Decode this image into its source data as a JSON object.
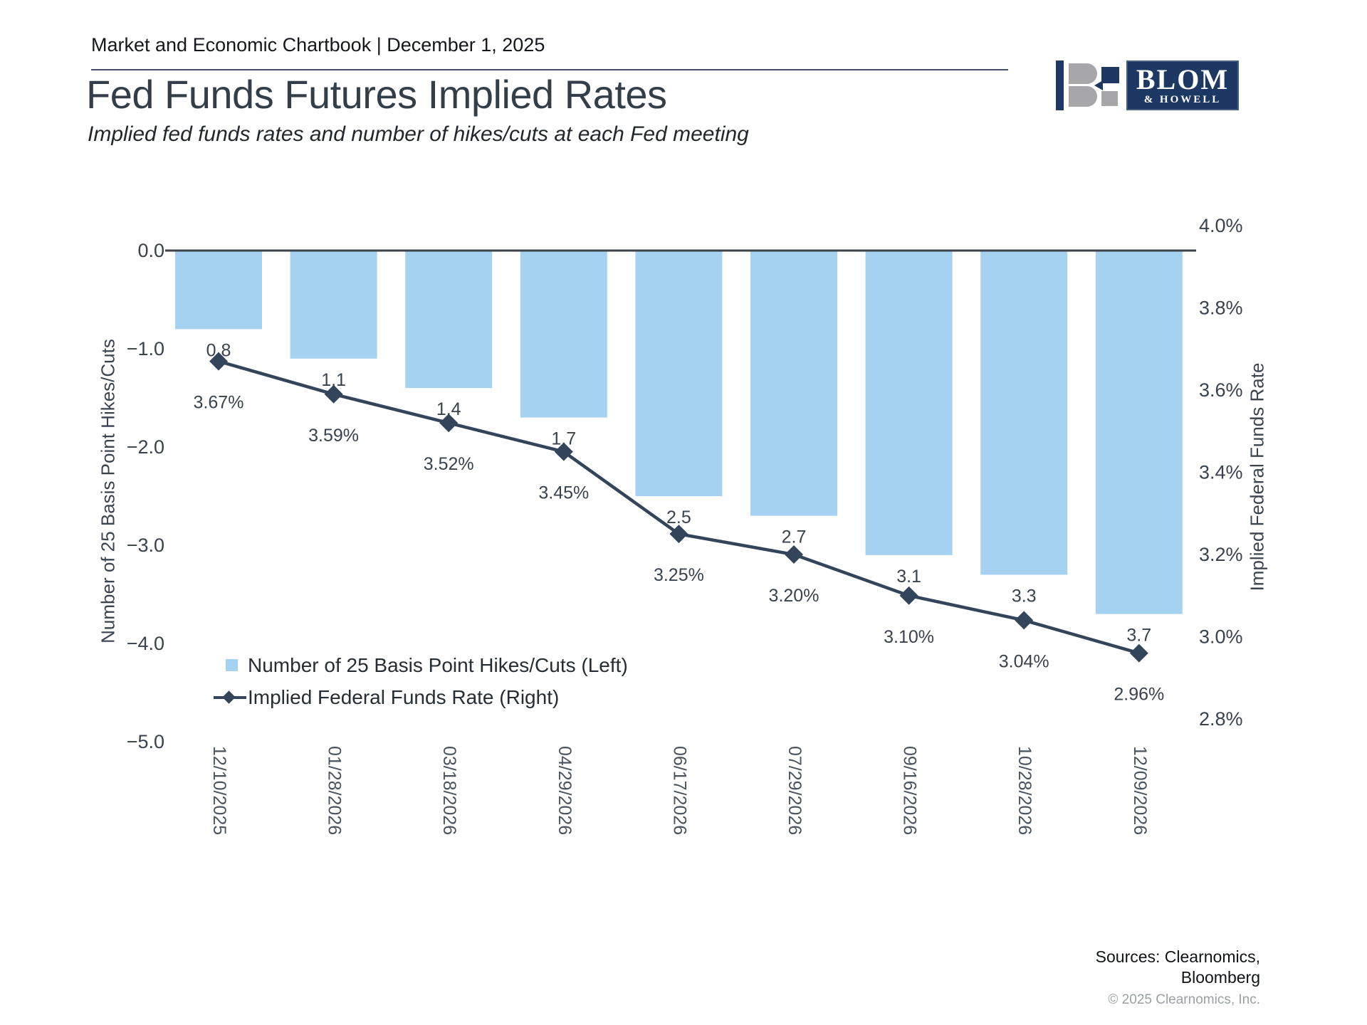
{
  "page": {
    "header": "Market and Economic Chartbook | December 1, 2025",
    "title": "Fed Funds Futures Implied Rates",
    "subtitle": "Implied fed funds rates and number of hikes/cuts at each Fed meeting",
    "sources_line1": "Sources: Clearnomics,",
    "sources_line2": "Bloomberg",
    "copyright": "© 2025 Clearnomics, Inc."
  },
  "logo": {
    "name": "BLOM",
    "suffix": "& HOWELL"
  },
  "colors": {
    "bar": "#A6D2F1",
    "line": "#33455B",
    "navy": "#1E3864",
    "logo_gray": "#A7A7A9",
    "axis_line": "#3e434a",
    "tick_text": "#39424D",
    "date_text": "#49525D"
  },
  "chart_data": {
    "type": "bar+line",
    "title": "Fed Funds Futures Implied Rates",
    "subtitle": "Implied fed funds rates and number of hikes/cuts at each Fed meeting",
    "categories": [
      "12/10/2025",
      "01/28/2026",
      "03/18/2026",
      "04/29/2026",
      "06/17/2026",
      "07/29/2026",
      "09/16/2026",
      "10/28/2026",
      "12/09/2026"
    ],
    "series": [
      {
        "name": "Number of 25 Basis Point Hikes/Cuts (Left)",
        "type": "bar",
        "axis": "left",
        "values": [
          -0.8,
          -1.1,
          -1.4,
          -1.7,
          -2.5,
          -2.7,
          -3.1,
          -3.3,
          -3.7
        ],
        "labels": [
          "0.8",
          "1.1",
          "1.4",
          "1.7",
          "2.5",
          "2.7",
          "3.1",
          "3.3",
          "3.7"
        ]
      },
      {
        "name": "Implied Federal Funds Rate (Right)",
        "type": "line",
        "axis": "right",
        "values": [
          3.67,
          3.59,
          3.52,
          3.45,
          3.25,
          3.2,
          3.1,
          3.04,
          2.96
        ],
        "labels": [
          "3.67%",
          "3.59%",
          "3.52%",
          "3.45%",
          "3.25%",
          "3.20%",
          "3.10%",
          "3.04%",
          "2.96%"
        ]
      }
    ],
    "left_axis": {
      "title": "Number of 25 Basis Point Hikes/Cuts",
      "min": -5.0,
      "max": 0.0,
      "ticks": [
        "0.0",
        "−1.0",
        "−2.0",
        "−3.0",
        "−4.0",
        "−5.0"
      ]
    },
    "right_axis": {
      "title": "Implied Federal Funds Rate",
      "min": 2.8,
      "max": 4.0,
      "ticks": [
        "4.0%",
        "3.8%",
        "3.6%",
        "3.4%",
        "3.2%",
        "3.0%",
        "2.8%"
      ]
    },
    "legend": [
      "Number of 25 Basis Point Hikes/Cuts (Left)",
      "Implied Federal Funds Rate (Right)"
    ],
    "grid": false,
    "legend_position": "inside-lower-left"
  }
}
